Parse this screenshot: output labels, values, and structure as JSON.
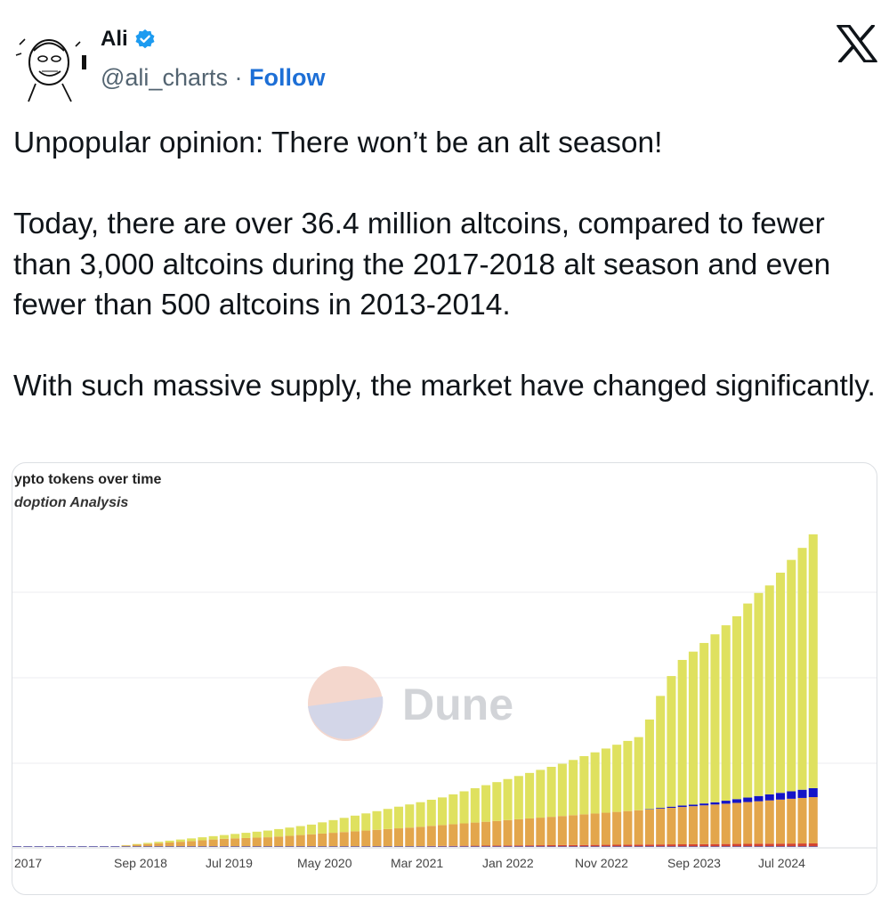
{
  "author": {
    "name": "Ali",
    "handle": "@ali_charts",
    "separator": "·",
    "follow_label": "Follow",
    "verified_color": "#1d9bf0",
    "avatar_icon": "cartoon-face-avatar"
  },
  "brand": {
    "icon": "x-logo-icon"
  },
  "tweet": {
    "text": "Unpopular opinion: There won’t be an alt season!\n\nToday, there are over 36.4 million altcoins, compared to fewer than 3,000 altcoins during the 2017-2018 alt season and even fewer than 500 altcoins in 2013-2014.\n\nWith such massive supply, the market have changed significantly."
  },
  "chart_data": {
    "type": "bar",
    "stacked": true,
    "title": "ypto tokens over time",
    "subtitle": "doption Analysis",
    "watermark": "Dune",
    "x_tick_labels": [
      "2017",
      "Sep 2018",
      "Jul 2019",
      "May 2020",
      "Mar 2021",
      "Jan 2022",
      "Nov 2022",
      "Sep 2023",
      "Jul 2024"
    ],
    "grid": true,
    "colors": {
      "yellow": "#dfe15f",
      "orange": "#e3a64c",
      "red": "#d4432f",
      "blue": "#1414c8",
      "purple": "#5b55a3"
    },
    "series": [
      {
        "color_key": "yellow",
        "values": [
          0,
          0,
          0,
          0,
          0,
          0,
          0,
          0,
          0,
          0,
          0.5,
          1,
          1.5,
          2,
          2.5,
          3,
          3.5,
          4,
          4.5,
          5,
          6,
          7,
          8,
          9,
          10,
          11,
          12,
          13,
          15,
          17,
          19,
          21,
          23,
          25,
          27,
          29,
          31,
          33,
          35,
          37,
          40,
          43,
          46,
          49,
          52,
          55,
          58,
          61,
          64,
          67,
          70,
          74,
          78,
          82,
          86,
          90,
          94,
          98,
          120,
          150,
          175,
          195,
          205,
          215,
          225,
          235,
          245,
          260,
          272,
          280,
          295,
          310,
          324,
          340
        ]
      },
      {
        "color_key": "blue",
        "values": [
          0,
          0,
          0,
          0,
          0,
          0,
          0,
          0,
          0,
          0,
          0,
          0,
          0,
          0,
          0,
          0,
          0,
          0,
          0,
          0,
          0,
          0,
          0,
          0,
          0,
          0,
          0,
          0,
          0,
          0,
          0,
          0,
          0,
          0,
          0,
          0,
          0,
          0,
          0,
          0,
          0,
          0,
          0,
          0,
          0,
          0,
          0,
          0,
          0,
          0,
          0,
          0,
          0,
          0,
          0,
          0,
          0,
          0,
          0.5,
          1,
          1.5,
          2,
          2,
          2.5,
          3,
          4,
          5,
          6,
          7,
          8,
          9,
          10,
          11,
          12
        ]
      },
      {
        "color_key": "orange",
        "values": [
          0,
          0,
          0,
          0,
          0,
          0,
          0,
          0,
          0,
          0,
          1,
          2,
          3,
          4,
          5,
          6,
          7,
          8,
          9,
          10,
          10.5,
          11,
          11.5,
          12,
          13,
          14,
          15,
          16,
          17,
          18,
          19,
          20,
          21,
          22,
          23,
          24,
          25,
          26,
          27,
          28,
          29,
          30,
          31,
          32,
          33,
          34,
          35,
          36,
          37,
          38,
          39,
          40,
          41,
          42,
          43,
          44,
          45,
          46,
          47,
          48,
          49,
          50,
          51,
          52,
          53,
          54,
          55,
          56,
          57,
          58,
          59,
          60,
          61,
          62
        ]
      },
      {
        "color_key": "red",
        "values": [
          0,
          0,
          0,
          0,
          0,
          0,
          0,
          0,
          0,
          0,
          0,
          0,
          0,
          0,
          0,
          0,
          0,
          0,
          0,
          0,
          0,
          0,
          0,
          0,
          0,
          0,
          0,
          0,
          0,
          0,
          0,
          0,
          0,
          0,
          0,
          0,
          0,
          0,
          0.3,
          0.4,
          0.5,
          0.6,
          0.7,
          0.8,
          0.9,
          1,
          1.1,
          1.2,
          1.3,
          1.4,
          1.5,
          1.6,
          1.7,
          1.8,
          1.9,
          2,
          2.1,
          2.2,
          2.3,
          2.4,
          2.5,
          2.6,
          2.7,
          2.8,
          2.9,
          3,
          3.1,
          3.2,
          3.3,
          3.4,
          3.5,
          3.6,
          3.7,
          3.8
        ]
      },
      {
        "color_key": "purple",
        "values": [
          1,
          1,
          1,
          1,
          1,
          1,
          1,
          1,
          1,
          1,
          1,
          1,
          1,
          1,
          1,
          1,
          1,
          1,
          1,
          1,
          1,
          1,
          1,
          1,
          1,
          1,
          1,
          1,
          1,
          1,
          1,
          1,
          1,
          1,
          1,
          1,
          1,
          1,
          1,
          1,
          1,
          1,
          1,
          1,
          1,
          1,
          1,
          1,
          1,
          1,
          1,
          1,
          1,
          1,
          1,
          1,
          1,
          1,
          1,
          1,
          1,
          1,
          1,
          1,
          1,
          1,
          1,
          1,
          1,
          1,
          1,
          1,
          1,
          1
        ]
      }
    ]
  }
}
